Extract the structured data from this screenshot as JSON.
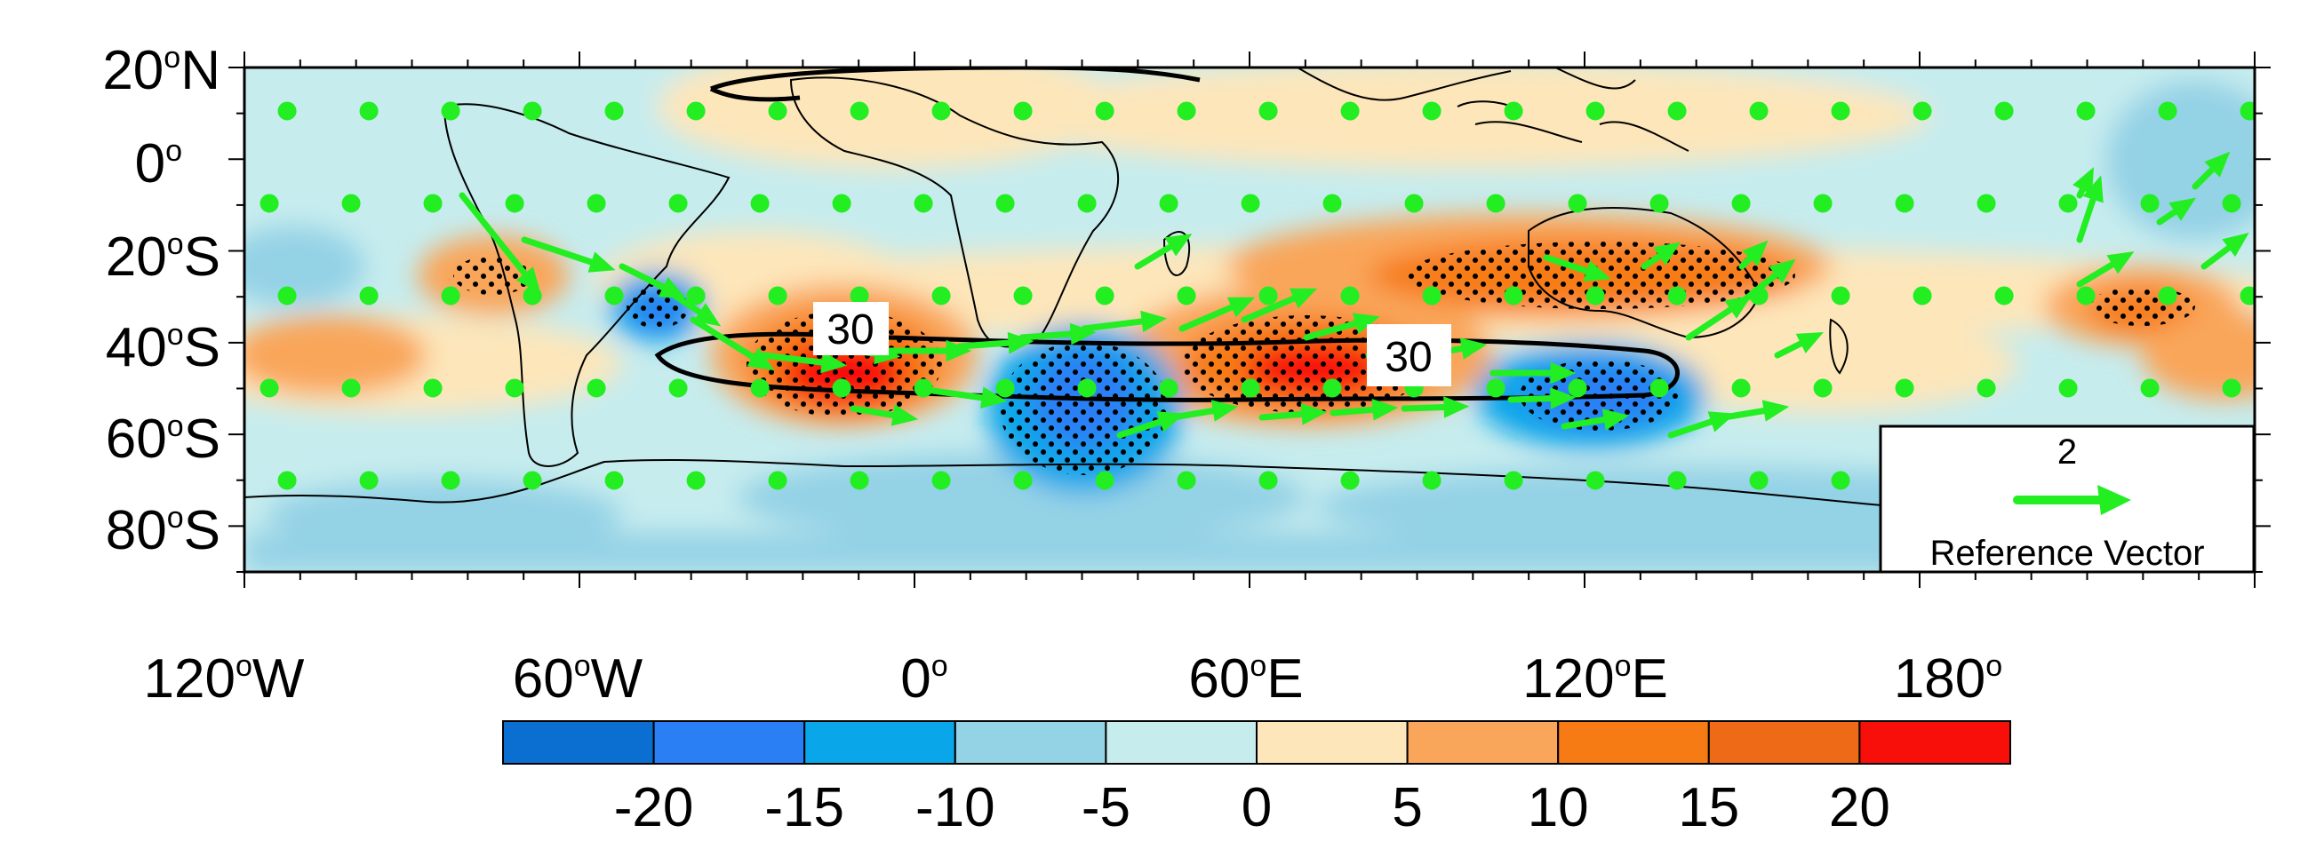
{
  "map": {
    "lat_labels": [
      {
        "deg": "20",
        "hemi": "N",
        "lat": 20
      },
      {
        "deg": "0",
        "hemi": "",
        "lat": 0
      },
      {
        "deg": "20",
        "hemi": "S",
        "lat": -20
      },
      {
        "deg": "40",
        "hemi": "S",
        "lat": -40
      },
      {
        "deg": "60",
        "hemi": "S",
        "lat": -60
      },
      {
        "deg": "80",
        "hemi": "S",
        "lat": -80
      }
    ],
    "lon_labels": [
      {
        "deg": "120",
        "hemi": "W",
        "lon": -120
      },
      {
        "deg": "60",
        "hemi": "W",
        "lon": -60
      },
      {
        "deg": "0",
        "hemi": "",
        "lon": 0
      },
      {
        "deg": "60",
        "hemi": "E",
        "lon": 60
      },
      {
        "deg": "120",
        "hemi": "E",
        "lon": 120
      },
      {
        "deg": "180",
        "hemi": "",
        "lon": 180
      }
    ],
    "lon_range": [
      -120,
      240
    ],
    "lat_range": [
      -90,
      20
    ],
    "contour_label": "30",
    "reference_vector": {
      "value": "2",
      "label": "Reference Vector"
    },
    "vector_color": "#22ee22",
    "colorbar": {
      "levels": [
        "-20",
        "-15",
        "-10",
        "-5",
        "0",
        "5",
        "10",
        "15",
        "20"
      ],
      "colors": [
        "#0a6fd0",
        "#2b7ff5",
        "#09a6ea",
        "#94d2e6",
        "#c6ecee",
        "#fde6ba",
        "#f9a65a",
        "#f77b14",
        "#ef6a16",
        "#f80f0a"
      ]
    },
    "anomaly_centers": [
      {
        "lon": -72,
        "lat": -27,
        "value": 10
      },
      {
        "lon": -52,
        "lat": -33,
        "value": -15
      },
      {
        "lon": -15,
        "lat": -45,
        "value": 22
      },
      {
        "lon": 28,
        "lat": -55,
        "value": -18
      },
      {
        "lon": 68,
        "lat": -45,
        "value": 22
      },
      {
        "lon": 118,
        "lat": -50,
        "value": -20
      },
      {
        "lon": 130,
        "lat": -25,
        "value": 12
      },
      {
        "lon": 200,
        "lat": -32,
        "value": 12
      },
      {
        "lon": -95,
        "lat": -47,
        "value": 8
      },
      {
        "lon": 230,
        "lat": -45,
        "value": 8
      }
    ]
  }
}
